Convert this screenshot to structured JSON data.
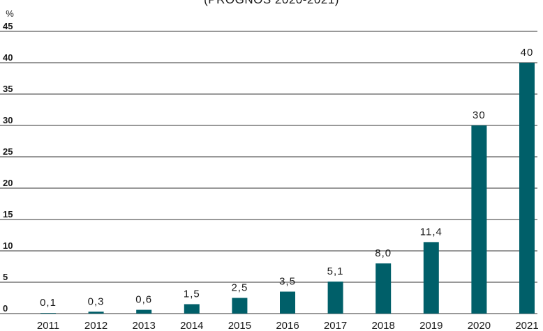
{
  "chart_data": {
    "type": "bar",
    "subtitle": "(PROGNOS 2020-2021)",
    "ylabel": "%",
    "ylim": [
      0,
      45
    ],
    "yticks": [
      0,
      5,
      10,
      15,
      20,
      25,
      30,
      35,
      40,
      45
    ],
    "grid": true,
    "categories": [
      "2011",
      "2012",
      "2013",
      "2014",
      "2015",
      "2016",
      "2017",
      "2018",
      "2019",
      "2020",
      "2021"
    ],
    "values": [
      0.1,
      0.3,
      0.6,
      1.5,
      2.5,
      3.5,
      5.1,
      8.0,
      11.4,
      30,
      40
    ],
    "labels": [
      "0,1",
      "0,3",
      "0,6",
      "1,5",
      "2,5",
      "3,5",
      "5,1",
      "8,0",
      "11,4",
      "30",
      "40"
    ],
    "colors": {
      "bar": "#005f69"
    }
  }
}
